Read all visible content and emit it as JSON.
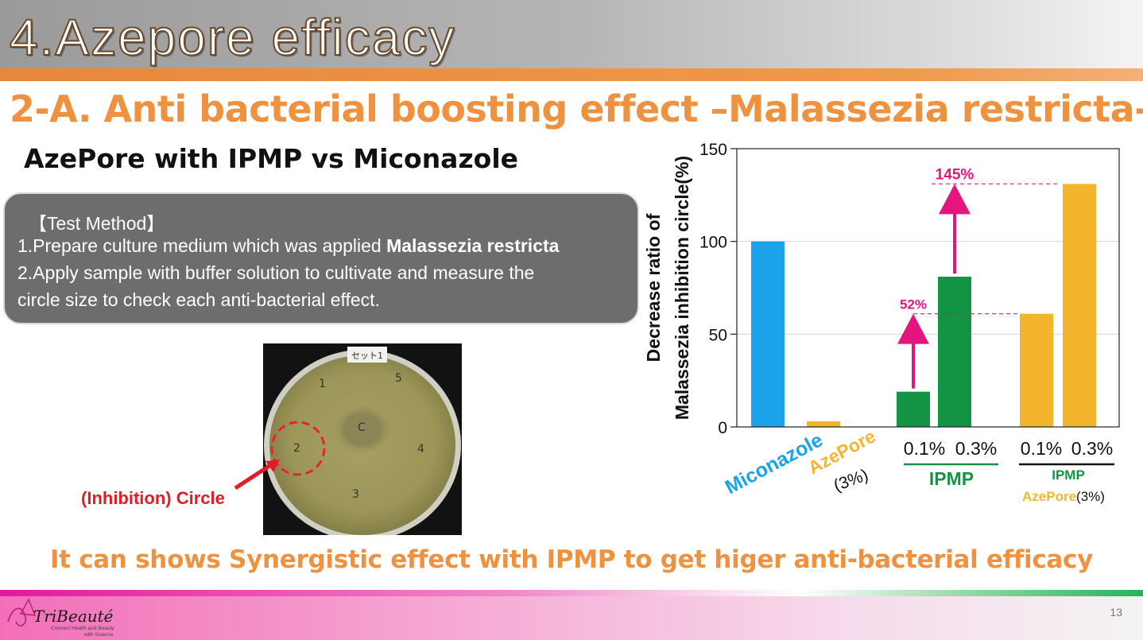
{
  "slide": {
    "title": "4.Azepore efficacy",
    "subtitle": "2-A. Anti bacterial boosting effect –Malassezia restricta-",
    "heading": "AzePore with IPMP vs Miconazole",
    "conclusion": "It can shows Synergistic effect with IPMP to get higer anti-bacterial efficacy",
    "page_number": "13",
    "logo_text": "TriBeauté",
    "logo_tagline_1": "Connect Health and Beauty",
    "logo_tagline_2": "with Science"
  },
  "method": {
    "title": "【Test Method】",
    "line1_prefix": "1.Prepare culture medium which was applied ",
    "line1_bold": "Malassezia restricta",
    "line2": "2.Apply sample with buffer solution to cultivate and measure the",
    "line3": "circle size to check each anti-bacterial effect."
  },
  "photo": {
    "label": "セット1",
    "well_labels": [
      "1",
      "5",
      "C",
      "2",
      "4",
      "3"
    ],
    "annotation": "(Inhibition) Circle"
  },
  "chart_data": {
    "type": "bar",
    "ylabel_line1": "Decrease ratio of",
    "ylabel_line2": "Malassezia inhibition circle(%)",
    "ylim": [
      0,
      150
    ],
    "yticks": [
      0,
      50,
      100,
      150
    ],
    "grid": true,
    "bars": [
      {
        "group": "Miconazole",
        "category": "",
        "value": 100,
        "color": "#1aa3e8"
      },
      {
        "group": "AzePore",
        "category": "",
        "value": 3,
        "color": "#f4b52e"
      },
      {
        "group": "IPMP",
        "category": "0.1%",
        "value": 19,
        "color": "#129444"
      },
      {
        "group": "IPMP",
        "category": "0.3%",
        "value": 81,
        "color": "#129444"
      },
      {
        "group": "IPMP AzePore(3%)",
        "category": "0.1%",
        "value": 61,
        "color": "#f4b52e"
      },
      {
        "group": "IPMP AzePore(3%)",
        "category": "0.3%",
        "value": 131,
        "color": "#f4b52e"
      }
    ],
    "group_labels": {
      "miconazole": "Miconazole",
      "azepore": "AzePore",
      "azepore_conc": "(3%)",
      "ipmp_low": "0.1%",
      "ipmp_high": "0.3%",
      "ipmp": "IPMP",
      "combo_low": "0.1%",
      "combo_high": "0.3%",
      "combo_ipmp": "IPMP",
      "combo_azepore": "AzePore",
      "combo_conc": "(3%)"
    },
    "annotations": [
      {
        "text": "52%",
        "from_value": 19,
        "to_value": 61
      },
      {
        "text": "145%",
        "from_value": 81,
        "to_value": 131
      }
    ],
    "colors": {
      "miconazole": "#1aa3e8",
      "azepore": "#f4b52e",
      "ipmp": "#129444",
      "arrow": "#e4157f"
    }
  }
}
